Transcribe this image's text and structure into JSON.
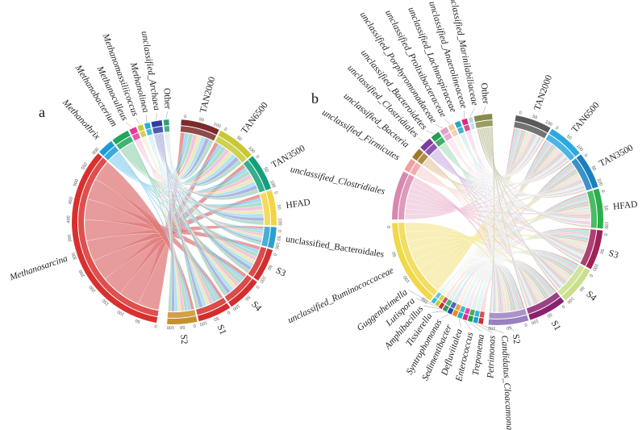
{
  "panels": [
    {
      "letter": "a",
      "samples": [
        {
          "label": "TAN2000",
          "color": "#7b2b2b"
        },
        {
          "label": "TAN6500",
          "color": "#c8c832"
        },
        {
          "label": "TAN3500",
          "color": "#12a07a"
        },
        {
          "label": "HFAD",
          "color": "#f2d540"
        },
        {
          "label": "unclassified_Bacteroidales",
          "color": "#2aa0d0"
        },
        {
          "label": "S3",
          "color": "#d42d2d"
        },
        {
          "label": "S4",
          "color": "#d42d2d"
        },
        {
          "label": "S1",
          "color": "#d42d2d"
        },
        {
          "label": "S2",
          "color": "#c8902a"
        }
      ],
      "taxa": [
        {
          "label": "Methanosarcina",
          "color": "#d9302f",
          "ribbon": "#e07a7a"
        },
        {
          "label": "Methanothrix",
          "color": "#1a9ad6",
          "ribbon": "#6cc3ea"
        },
        {
          "label": "Methanobacterium",
          "color": "#1ea65a",
          "ribbon": "#7cc9a0"
        },
        {
          "label": "Methanoculleus",
          "color": "#e03a9a",
          "ribbon": "#ec9cc8"
        },
        {
          "label": "Methanomassiliicoccus",
          "color": "#c9c934",
          "ribbon": "#dede8a"
        },
        {
          "label": "Methanolinea",
          "color": "#1fb0e0",
          "ribbon": "#7fd0ee"
        },
        {
          "label": "unclassified_Archaea",
          "color": "#2f3fa0",
          "ribbon": "#7a84cc"
        },
        {
          "label": "Other",
          "color": "#2e9e6e",
          "ribbon": "#88c8aa"
        }
      ],
      "axis_ticks": [
        "0",
        "50",
        "100",
        "150",
        "200",
        "250",
        "300",
        "350",
        "400",
        "450",
        "500",
        "550",
        "600"
      ],
      "sample_ticks": [
        "0",
        "50",
        "100"
      ]
    },
    {
      "letter": "b",
      "samples": [
        {
          "label": "TAN2000",
          "color": "#5a5a5a"
        },
        {
          "label": "TAN6500",
          "color": "#2aa8e0"
        },
        {
          "label": "TAN3500",
          "color": "#1a7fc0"
        },
        {
          "label": "HFAD",
          "color": "#2ab04a"
        },
        {
          "label": "S3",
          "color": "#a0205a"
        },
        {
          "label": "S4",
          "color": "#c8e08a"
        },
        {
          "label": "S1",
          "color": "#8a2070"
        },
        {
          "label": "S2",
          "color": "#9a80c0"
        }
      ],
      "taxa": [
        {
          "label": "Candidatus_Cloacamonas",
          "color": "#d03030",
          "ribbon": "#e88a8a"
        },
        {
          "label": "Petrimonas",
          "color": "#1aa0d8",
          "ribbon": "#80cdee"
        },
        {
          "label": "Treponema",
          "color": "#20a040",
          "ribbon": "#88cc98"
        },
        {
          "label": "Enterococcus",
          "color": "#e02890",
          "ribbon": "#ee98c6"
        },
        {
          "label": "Defluviitalea",
          "color": "#20b0c0",
          "ribbon": "#88d4dc"
        },
        {
          "label": "Sedimentibacter",
          "color": "#f08a20",
          "ribbon": "#f6c28a"
        },
        {
          "label": "Syntrophomonas",
          "color": "#2850a8",
          "ribbon": "#8aa0d4"
        },
        {
          "label": "Tissierella",
          "color": "#30a060",
          "ribbon": "#90cca8"
        },
        {
          "label": "Amphibacillus",
          "color": "#c03040",
          "ribbon": "#e09098"
        },
        {
          "label": "Lutispora",
          "color": "#c8c830",
          "ribbon": "#e2e28c"
        },
        {
          "label": "Guggenheimella",
          "color": "#40b8e0",
          "ribbon": "#9ad8ee"
        },
        {
          "label": "unclassified_Ruminococcaceae",
          "color": "#f0d848",
          "ribbon": "#f6e9a0"
        },
        {
          "label": "unclassified_Clostridiales",
          "color": "#d888b0",
          "ribbon": "#ecbcd4"
        },
        {
          "label": "unclassified_Firmicutes",
          "color": "#f0a0a0",
          "ribbon": "#f6c8c8"
        },
        {
          "label": "unclassified_Bacteria",
          "color": "#a07828",
          "ribbon": "#d8b888"
        },
        {
          "label": "unclassified_Clostridiales",
          "color": "#7a3aa0",
          "ribbon": "#c0a0d8"
        },
        {
          "label": "unclassified_Bacteroidetes",
          "color": "#20a050",
          "ribbon": "#90d0a8"
        },
        {
          "label": "unclassified_Porphyromonadaceae",
          "color": "#e0a0c8",
          "ribbon": "#f0cce0"
        },
        {
          "label": "unclassified_Prolixibacteraceae",
          "color": "#f4c8a0",
          "ribbon": "#f8e0c8"
        },
        {
          "label": "unclassified_Lachnospiraceae",
          "color": "#20a8c0",
          "ribbon": "#90d4e0"
        },
        {
          "label": "unclassified_Anaerolineaceae",
          "color": "#e02880",
          "ribbon": "#ee98c0"
        },
        {
          "label": "unclassified_Marinilabiliaceae",
          "color": "#b8d8e8",
          "ribbon": "#dcecf4"
        },
        {
          "label": "Other",
          "color": "#8a8a4a",
          "ribbon": "#b8b890"
        }
      ],
      "axis_ticks": [
        "0",
        "50",
        "100",
        "150"
      ],
      "sample_ticks": [
        "0",
        "50",
        "100"
      ]
    }
  ]
}
